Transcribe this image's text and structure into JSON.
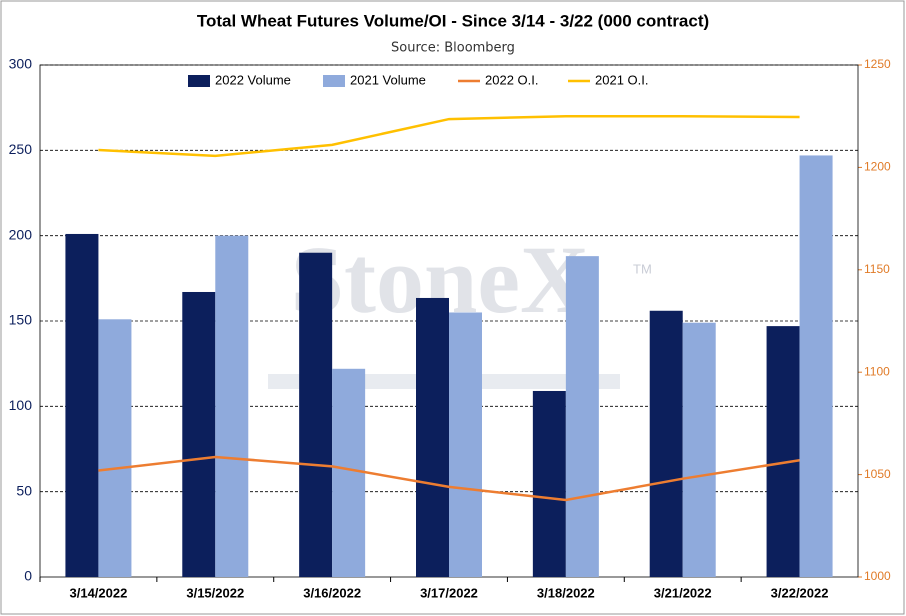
{
  "chart_data": {
    "type": "bar",
    "title": "Total Wheat Futures Volume/OI  - Since 3/14 - 3/22 (000 contract)",
    "subtitle": "Source: Bloomberg",
    "watermark": "StoneX",
    "watermark_mark": "TM",
    "categories": [
      "3/14/2022",
      "3/15/2022",
      "3/16/2022",
      "3/17/2022",
      "3/18/2022",
      "3/21/2022",
      "3/22/2022"
    ],
    "series": [
      {
        "name": "2022 Volume",
        "type": "bar",
        "color": "#0c1f5c",
        "values": [
          201,
          167,
          190,
          163.5,
          109,
          156,
          147
        ]
      },
      {
        "name": "2021 Volume",
        "type": "bar",
        "color": "#8faadc",
        "values": [
          151,
          200,
          122,
          155,
          188,
          149,
          247
        ]
      },
      {
        "name": "2022 O.I.",
        "type": "line",
        "axis": "y2",
        "color": "#ed7d31",
        "values": [
          1052,
          1058.6,
          1054,
          1044,
          1037.6,
          1048,
          1057
        ]
      },
      {
        "name": "2021 O.I.",
        "type": "line",
        "axis": "y2",
        "color": "#ffc000",
        "values": [
          1208.5,
          1205.6,
          1211,
          1223.6,
          1225,
          1225,
          1224.6
        ]
      }
    ],
    "ylim": [
      0,
      300
    ],
    "yticks": [
      0,
      50,
      100,
      150,
      200,
      250,
      300
    ],
    "y2lim": [
      1000,
      1250
    ],
    "y2ticks": [
      1000,
      1050,
      1100,
      1150,
      1200,
      1250
    ],
    "grid": true,
    "legend": "top"
  }
}
